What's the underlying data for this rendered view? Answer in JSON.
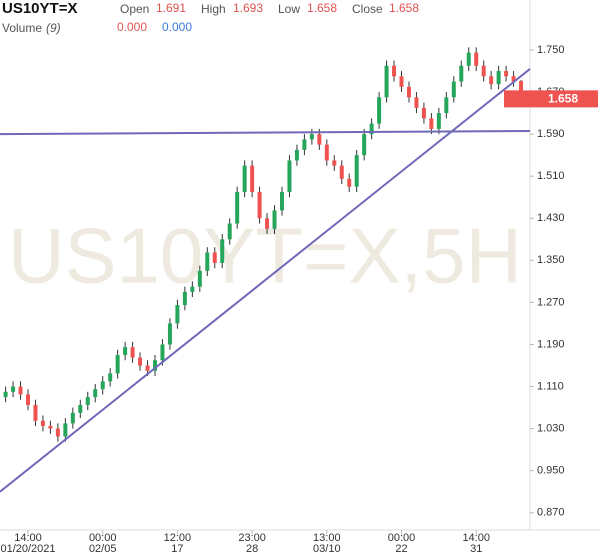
{
  "chart_data": {
    "type": "candlestick",
    "title": "US10YT=X",
    "header": {
      "open_label": "Open",
      "open": "1.691",
      "high_label": "High",
      "high": "1.693",
      "low_label": "Low",
      "low": "1.658",
      "close_label": "Close",
      "close": "1.658",
      "volume_label": "Volume",
      "volume_param": "(9)",
      "volume_a": "0.000",
      "volume_b": "0.000"
    },
    "watermark": "US10YT=X,5H",
    "last_price_label": "1.658",
    "up_color": "#26a65b",
    "down_color": "#ef5350",
    "trendline_color": "#7068b8",
    "categories": [
      null,
      null,
      null,
      "14:00",
      null,
      null,
      null,
      null,
      null,
      null,
      null,
      null,
      null,
      "00:00",
      null,
      null,
      null,
      null,
      null,
      null,
      null,
      null,
      null,
      "12:00",
      null,
      null,
      null,
      null,
      null,
      null,
      null,
      null,
      null,
      "23:00",
      null,
      null,
      null,
      null,
      null,
      null,
      null,
      null,
      null,
      "13:00",
      null,
      null,
      null,
      null,
      null,
      null,
      null,
      null,
      null,
      "00:00",
      null,
      null,
      null,
      null,
      null,
      null,
      null,
      null,
      null,
      "14:00",
      null,
      null,
      null,
      null,
      null,
      null
    ],
    "category_dates": [
      null,
      null,
      null,
      "01/20/2021",
      null,
      null,
      null,
      null,
      null,
      null,
      null,
      null,
      null,
      "02/05",
      null,
      null,
      null,
      null,
      null,
      null,
      null,
      null,
      null,
      "17",
      null,
      null,
      null,
      null,
      null,
      null,
      null,
      null,
      null,
      "28",
      null,
      null,
      null,
      null,
      null,
      null,
      null,
      null,
      null,
      "03/10",
      null,
      null,
      null,
      null,
      null,
      null,
      null,
      null,
      null,
      "22",
      null,
      null,
      null,
      null,
      null,
      null,
      null,
      null,
      null,
      "31",
      null,
      null,
      null,
      null,
      null,
      null
    ],
    "open": [
      1.09,
      1.1,
      1.11,
      1.095,
      1.075,
      1.045,
      1.035,
      1.03,
      1.015,
      1.04,
      1.06,
      1.075,
      1.09,
      1.105,
      1.12,
      1.135,
      1.17,
      1.185,
      1.165,
      1.15,
      1.14,
      1.16,
      1.19,
      1.23,
      1.265,
      1.29,
      1.3,
      1.33,
      1.365,
      1.345,
      1.39,
      1.42,
      1.48,
      1.53,
      1.48,
      1.43,
      1.41,
      1.445,
      1.48,
      1.54,
      1.56,
      1.58,
      1.59,
      1.57,
      1.54,
      1.53,
      1.505,
      1.49,
      1.55,
      1.59,
      1.61,
      1.66,
      1.72,
      1.7,
      1.68,
      1.66,
      1.64,
      1.62,
      1.6,
      1.63,
      1.66,
      1.69,
      1.72,
      1.745,
      1.72,
      1.7,
      1.685,
      1.71,
      1.7,
      1.691
    ],
    "high": [
      1.11,
      1.12,
      1.12,
      1.105,
      1.085,
      1.055,
      1.045,
      1.04,
      1.05,
      1.07,
      1.085,
      1.1,
      1.115,
      1.13,
      1.145,
      1.18,
      1.195,
      1.195,
      1.175,
      1.16,
      1.17,
      1.2,
      1.24,
      1.275,
      1.3,
      1.31,
      1.34,
      1.375,
      1.375,
      1.4,
      1.43,
      1.49,
      1.54,
      1.54,
      1.49,
      1.44,
      1.455,
      1.49,
      1.55,
      1.57,
      1.59,
      1.6,
      1.6,
      1.58,
      1.55,
      1.54,
      1.515,
      1.56,
      1.6,
      1.62,
      1.67,
      1.73,
      1.73,
      1.71,
      1.69,
      1.67,
      1.65,
      1.63,
      1.64,
      1.67,
      1.7,
      1.73,
      1.755,
      1.755,
      1.73,
      1.71,
      1.72,
      1.72,
      1.71,
      1.693
    ],
    "low": [
      1.08,
      1.09,
      1.085,
      1.065,
      1.035,
      1.025,
      1.02,
      1.005,
      1.005,
      1.03,
      1.05,
      1.065,
      1.08,
      1.095,
      1.11,
      1.125,
      1.16,
      1.155,
      1.14,
      1.13,
      1.13,
      1.15,
      1.18,
      1.22,
      1.255,
      1.28,
      1.29,
      1.32,
      1.335,
      1.335,
      1.38,
      1.41,
      1.47,
      1.47,
      1.42,
      1.4,
      1.4,
      1.435,
      1.47,
      1.53,
      1.55,
      1.57,
      1.56,
      1.53,
      1.52,
      1.495,
      1.48,
      1.48,
      1.54,
      1.58,
      1.6,
      1.65,
      1.69,
      1.67,
      1.65,
      1.63,
      1.61,
      1.59,
      1.59,
      1.62,
      1.65,
      1.68,
      1.71,
      1.71,
      1.69,
      1.675,
      1.675,
      1.69,
      1.68,
      1.658
    ],
    "close": [
      1.1,
      1.11,
      1.095,
      1.075,
      1.045,
      1.035,
      1.03,
      1.015,
      1.04,
      1.06,
      1.075,
      1.09,
      1.105,
      1.12,
      1.135,
      1.17,
      1.185,
      1.165,
      1.15,
      1.14,
      1.16,
      1.19,
      1.23,
      1.265,
      1.29,
      1.3,
      1.33,
      1.365,
      1.345,
      1.39,
      1.42,
      1.48,
      1.53,
      1.48,
      1.43,
      1.41,
      1.445,
      1.48,
      1.54,
      1.56,
      1.58,
      1.59,
      1.57,
      1.54,
      1.53,
      1.505,
      1.49,
      1.55,
      1.59,
      1.61,
      1.66,
      1.72,
      1.7,
      1.68,
      1.66,
      1.64,
      1.62,
      1.6,
      1.63,
      1.66,
      1.69,
      1.72,
      1.745,
      1.72,
      1.7,
      1.685,
      1.71,
      1.7,
      1.69,
      1.658
    ],
    "trendlines": [
      {
        "x": [
          -0.75,
          70.2
        ],
        "y": [
          1.59,
          1.596
        ]
      },
      {
        "x": [
          -0.75,
          70.2
        ],
        "y": [
          0.91,
          1.714
        ]
      }
    ],
    "ylim": [
      0.841,
      1.769
    ],
    "yticks": [
      {
        "value": 0.87,
        "label": "0.870"
      },
      {
        "value": 0.95,
        "label": "0.950"
      },
      {
        "value": 1.03,
        "label": "1.030"
      },
      {
        "value": 1.11,
        "label": "1.110"
      },
      {
        "value": 1.19,
        "label": "1.190"
      },
      {
        "value": 1.27,
        "label": "1.270"
      },
      {
        "value": 1.35,
        "label": "1.350"
      },
      {
        "value": 1.43,
        "label": "1.430"
      },
      {
        "value": 1.51,
        "label": "1.510"
      },
      {
        "value": 1.59,
        "label": "1.590"
      },
      {
        "value": 1.67,
        "label": "1.670"
      },
      {
        "value": 1.75,
        "label": "1.750"
      }
    ]
  }
}
